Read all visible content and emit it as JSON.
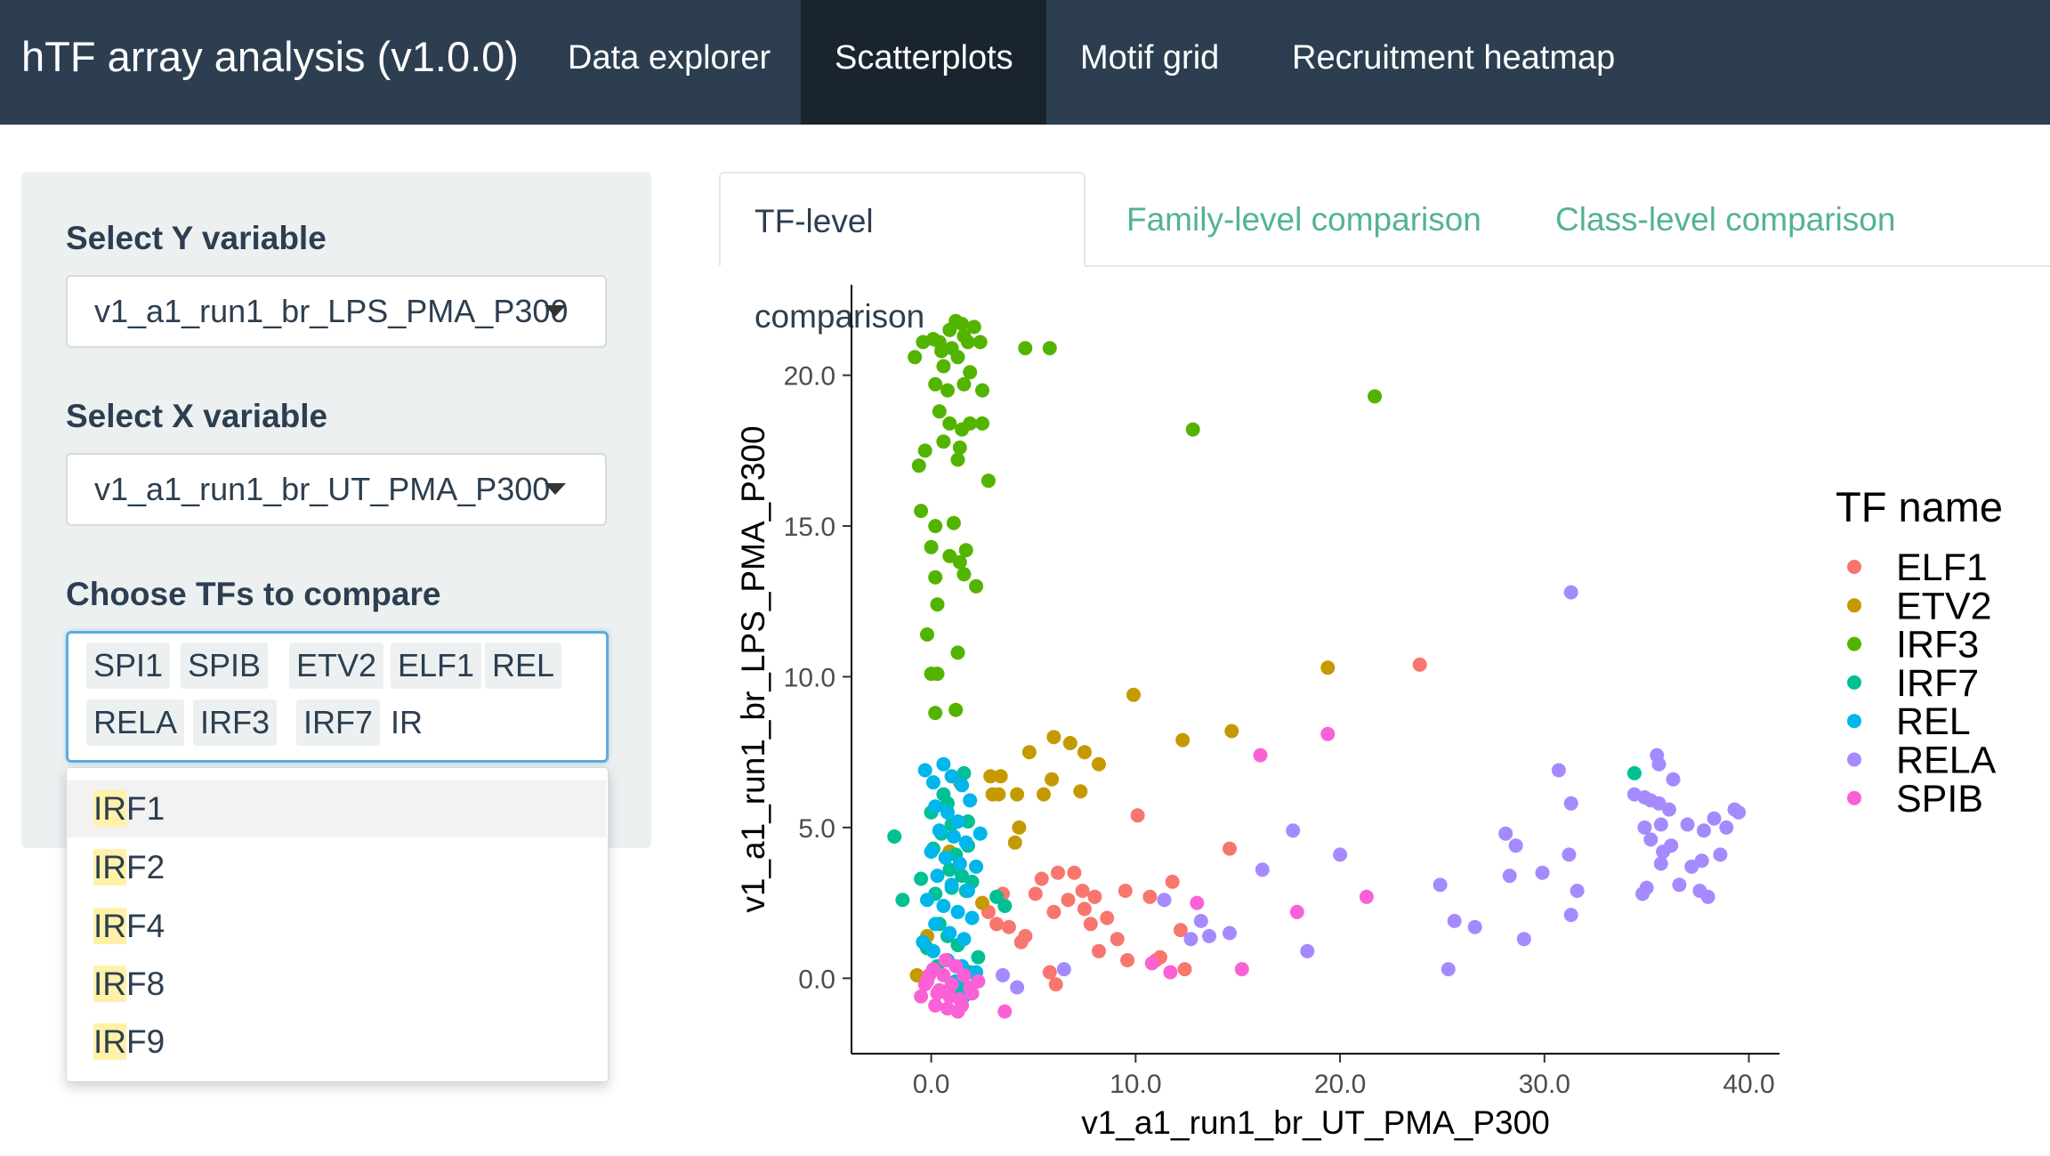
{
  "navbar": {
    "brand": "hTF array analysis (v1.0.0)",
    "tabs": [
      {
        "label": "Data explorer",
        "active": false
      },
      {
        "label": "Scatterplots",
        "active": true
      },
      {
        "label": "Motif grid",
        "active": false
      },
      {
        "label": "Recruitment heatmap",
        "active": false
      }
    ],
    "bg_color": "#2c3e50"
  },
  "sidebar": {
    "y_label": "Select Y variable",
    "y_value": "v1_a1_run1_br_LPS_PMA_P300",
    "x_label": "Select X variable",
    "x_value": "v1_a1_run1_br_UT_PMA_P300",
    "tf_label": "Choose TFs to compare",
    "tf_selected": [
      "SPI1",
      "SPIB",
      "ETV2",
      "ELF1",
      "REL",
      "RELA",
      "IRF3",
      "IRF7"
    ],
    "tf_typed": "IR",
    "dropdown_options": [
      {
        "match": "IR",
        "rest": "F1"
      },
      {
        "match": "IR",
        "rest": "F2"
      },
      {
        "match": "IR",
        "rest": "F4"
      },
      {
        "match": "IR",
        "rest": "F8"
      },
      {
        "match": "IR",
        "rest": "F9"
      }
    ]
  },
  "tabs": [
    {
      "label": "TF-level comparison",
      "active": true
    },
    {
      "label": "Family-level comparison",
      "active": false
    },
    {
      "label": "Class-level comparison",
      "active": false
    }
  ],
  "chart_data": {
    "type": "scatter",
    "xlabel": "v1_a1_run1_br_UT_PMA_P300",
    "ylabel": "v1_a1_run1_br_LPS_PMA_P300",
    "xlim": [
      -3.9,
      41.5
    ],
    "ylim": [
      -2.5,
      23.0
    ],
    "xticks": [
      0,
      10,
      20,
      30,
      40
    ],
    "yticks": [
      0,
      5,
      10,
      15,
      20
    ],
    "xtick_labels": [
      "0.0",
      "10.0",
      "20.0",
      "30.0",
      "40.0"
    ],
    "ytick_labels": [
      "0.0",
      "5.0",
      "10.0",
      "15.0",
      "20.0"
    ],
    "grid": false,
    "legend_title": "TF name",
    "legend_position": "right",
    "series": [
      {
        "name": "ELF1",
        "color": "#F8766D",
        "points": [
          [
            23.9,
            10.4
          ],
          [
            5.4,
            3.3
          ],
          [
            6.2,
            3.5
          ],
          [
            7.0,
            3.5
          ],
          [
            6.7,
            2.6
          ],
          [
            7.4,
            2.9
          ],
          [
            7.5,
            2.3
          ],
          [
            8.0,
            2.7
          ],
          [
            8.6,
            2.0
          ],
          [
            9.1,
            1.3
          ],
          [
            9.5,
            2.9
          ],
          [
            10.1,
            5.4
          ],
          [
            10.7,
            2.7
          ],
          [
            11.2,
            0.7
          ],
          [
            11.8,
            3.2
          ],
          [
            12.2,
            1.6
          ],
          [
            14.6,
            4.3
          ],
          [
            8.2,
            0.9
          ],
          [
            9.6,
            0.6
          ],
          [
            11.0,
            0.6
          ],
          [
            6.0,
            2.2
          ],
          [
            3.8,
            1.7
          ],
          [
            4.4,
            1.2
          ],
          [
            2.8,
            2.2
          ],
          [
            3.2,
            1.8
          ],
          [
            5.8,
            0.2
          ],
          [
            5.1,
            2.8
          ],
          [
            4.6,
            1.4
          ],
          [
            6.1,
            -0.2
          ],
          [
            12.4,
            0.3
          ],
          [
            3.5,
            2.8
          ],
          [
            7.8,
            1.8
          ]
        ]
      },
      {
        "name": "ETV2",
        "color": "#C49A00",
        "points": [
          [
            19.4,
            10.3
          ],
          [
            9.9,
            9.4
          ],
          [
            14.7,
            8.2
          ],
          [
            12.3,
            7.9
          ],
          [
            6.0,
            8.0
          ],
          [
            4.8,
            7.5
          ],
          [
            6.8,
            7.8
          ],
          [
            7.5,
            7.5
          ],
          [
            8.2,
            7.1
          ],
          [
            3.4,
            6.7
          ],
          [
            2.9,
            6.7
          ],
          [
            4.2,
            6.1
          ],
          [
            5.9,
            6.6
          ],
          [
            5.5,
            6.1
          ],
          [
            7.3,
            6.2
          ],
          [
            3.3,
            6.1
          ],
          [
            3.0,
            6.1
          ],
          [
            4.3,
            5.0
          ],
          [
            4.1,
            4.5
          ],
          [
            -0.2,
            1.4
          ],
          [
            -0.7,
            0.1
          ],
          [
            2.5,
            2.5
          ],
          [
            1.4,
            6.5
          ],
          [
            0.9,
            4.2
          ]
        ]
      },
      {
        "name": "IRF3",
        "color": "#53B400",
        "points": [
          [
            -0.8,
            20.6
          ],
          [
            -0.4,
            21.1
          ],
          [
            0.4,
            21.1
          ],
          [
            0.9,
            21.5
          ],
          [
            1.2,
            21.8
          ],
          [
            1.5,
            21.7
          ],
          [
            1.6,
            21.3
          ],
          [
            1.8,
            21.1
          ],
          [
            2.1,
            21.6
          ],
          [
            2.4,
            21.1
          ],
          [
            0.6,
            20.3
          ],
          [
            1.3,
            20.6
          ],
          [
            1.9,
            20.1
          ],
          [
            0.2,
            19.7
          ],
          [
            0.8,
            19.5
          ],
          [
            1.6,
            19.7
          ],
          [
            2.5,
            19.5
          ],
          [
            0.4,
            18.8
          ],
          [
            0.9,
            18.4
          ],
          [
            1.5,
            18.2
          ],
          [
            0.6,
            17.8
          ],
          [
            1.3,
            17.2
          ],
          [
            1.4,
            17.6
          ],
          [
            -0.6,
            17.0
          ],
          [
            -0.3,
            17.5
          ],
          [
            -0.5,
            15.5
          ],
          [
            0.2,
            15.0
          ],
          [
            1.1,
            15.1
          ],
          [
            0.0,
            14.3
          ],
          [
            0.9,
            14.0
          ],
          [
            1.4,
            13.8
          ],
          [
            1.7,
            14.2
          ],
          [
            1.6,
            13.4
          ],
          [
            0.2,
            13.3
          ],
          [
            2.2,
            13.0
          ],
          [
            0.3,
            12.4
          ],
          [
            -0.2,
            11.4
          ],
          [
            0.0,
            10.1
          ],
          [
            0.3,
            10.1
          ],
          [
            1.3,
            10.8
          ],
          [
            0.2,
            8.8
          ],
          [
            1.2,
            8.9
          ],
          [
            4.6,
            20.9
          ],
          [
            5.8,
            20.9
          ],
          [
            21.7,
            19.3
          ],
          [
            12.8,
            18.2
          ],
          [
            1.9,
            18.4
          ],
          [
            2.5,
            18.4
          ],
          [
            2.8,
            16.5
          ],
          [
            0.5,
            20.8
          ],
          [
            0.1,
            21.2
          ],
          [
            1.0,
            20.9
          ]
        ]
      },
      {
        "name": "IRF7",
        "color": "#00C094",
        "points": [
          [
            34.4,
            6.8
          ],
          [
            -1.8,
            4.7
          ],
          [
            0.6,
            6.1
          ],
          [
            0.0,
            5.5
          ],
          [
            1.0,
            5.1
          ],
          [
            1.8,
            5.2
          ],
          [
            0.5,
            4.8
          ],
          [
            1.2,
            4.1
          ],
          [
            0.9,
            3.6
          ],
          [
            1.5,
            3.4
          ],
          [
            2.0,
            3.2
          ],
          [
            1.7,
            2.9
          ],
          [
            0.2,
            2.8
          ],
          [
            0.4,
            1.8
          ],
          [
            0.8,
            1.4
          ],
          [
            1.3,
            1.1
          ],
          [
            -1.4,
            2.6
          ],
          [
            -0.5,
            3.3
          ],
          [
            3.2,
            2.7
          ],
          [
            3.6,
            2.4
          ],
          [
            2.3,
            0.7
          ],
          [
            1.9,
            0.2
          ],
          [
            1.4,
            -0.3
          ],
          [
            0.1,
            4.3
          ],
          [
            1.6,
            6.8
          ],
          [
            0.8,
            5.8
          ],
          [
            -0.2,
            1.0
          ],
          [
            0.3,
            0.4
          ],
          [
            1.8,
            4.4
          ],
          [
            1.0,
            3.0
          ]
        ]
      },
      {
        "name": "REL",
        "color": "#00B6EB",
        "points": [
          [
            -0.3,
            6.9
          ],
          [
            0.1,
            6.5
          ],
          [
            0.6,
            7.1
          ],
          [
            1.0,
            6.7
          ],
          [
            1.5,
            6.4
          ],
          [
            0.2,
            5.7
          ],
          [
            0.8,
            5.5
          ],
          [
            1.3,
            5.2
          ],
          [
            1.9,
            5.9
          ],
          [
            0.4,
            4.9
          ],
          [
            1.1,
            4.7
          ],
          [
            1.7,
            4.5
          ],
          [
            0.0,
            4.2
          ],
          [
            0.7,
            4.0
          ],
          [
            1.4,
            3.8
          ],
          [
            2.2,
            3.7
          ],
          [
            0.3,
            3.4
          ],
          [
            1.0,
            3.1
          ],
          [
            1.8,
            2.9
          ],
          [
            -0.2,
            2.6
          ],
          [
            0.6,
            2.4
          ],
          [
            1.3,
            2.2
          ],
          [
            2.0,
            2.0
          ],
          [
            0.2,
            1.8
          ],
          [
            0.9,
            1.5
          ],
          [
            1.6,
            1.3
          ],
          [
            0.1,
            0.9
          ],
          [
            0.8,
            0.6
          ],
          [
            1.5,
            0.4
          ],
          [
            2.2,
            0.2
          ],
          [
            1.6,
            -0.6
          ],
          [
            -0.4,
            1.2
          ],
          [
            2.4,
            4.8
          ],
          [
            1.2,
            -0.1
          ]
        ]
      },
      {
        "name": "RELA",
        "color": "#A58AFF",
        "points": [
          [
            31.3,
            12.8
          ],
          [
            30.7,
            6.9
          ],
          [
            31.3,
            5.8
          ],
          [
            31.2,
            4.1
          ],
          [
            31.3,
            2.1
          ],
          [
            31.6,
            2.9
          ],
          [
            29.9,
            3.5
          ],
          [
            28.3,
            3.4
          ],
          [
            28.6,
            4.4
          ],
          [
            28.1,
            4.8
          ],
          [
            24.9,
            3.1
          ],
          [
            25.6,
            1.9
          ],
          [
            26.6,
            1.7
          ],
          [
            29.0,
            1.3
          ],
          [
            34.9,
            6.0
          ],
          [
            35.2,
            5.9
          ],
          [
            35.6,
            5.8
          ],
          [
            35.6,
            7.1
          ],
          [
            35.5,
            7.4
          ],
          [
            36.3,
            6.6
          ],
          [
            36.1,
            5.6
          ],
          [
            35.7,
            5.1
          ],
          [
            35.2,
            4.6
          ],
          [
            36.2,
            4.4
          ],
          [
            37.0,
            5.1
          ],
          [
            37.8,
            4.9
          ],
          [
            38.3,
            5.3
          ],
          [
            38.9,
            5.0
          ],
          [
            39.3,
            5.6
          ],
          [
            34.9,
            5.0
          ],
          [
            35.8,
            4.2
          ],
          [
            35.7,
            3.8
          ],
          [
            37.2,
            3.7
          ],
          [
            37.7,
            3.9
          ],
          [
            38.6,
            4.1
          ],
          [
            37.6,
            2.9
          ],
          [
            38.0,
            2.7
          ],
          [
            35.0,
            3.0
          ],
          [
            34.8,
            2.8
          ],
          [
            39.5,
            5.5
          ],
          [
            34.4,
            6.1
          ],
          [
            36.6,
            3.1
          ],
          [
            20.0,
            4.1
          ],
          [
            16.2,
            3.6
          ],
          [
            17.7,
            4.9
          ],
          [
            25.3,
            0.3
          ],
          [
            18.4,
            0.9
          ],
          [
            14.6,
            1.5
          ],
          [
            13.2,
            1.9
          ],
          [
            13.6,
            1.4
          ],
          [
            11.4,
            2.6
          ],
          [
            6.5,
            0.3
          ],
          [
            3.5,
            0.1
          ],
          [
            4.2,
            -0.3
          ],
          [
            12.7,
            1.3
          ]
        ]
      },
      {
        "name": "SPIB",
        "color": "#FB61D7",
        "points": [
          [
            19.4,
            8.1
          ],
          [
            16.1,
            7.4
          ],
          [
            21.3,
            2.7
          ],
          [
            17.9,
            2.2
          ],
          [
            13.0,
            2.5
          ],
          [
            15.2,
            0.3
          ],
          [
            11.7,
            0.2
          ],
          [
            10.8,
            0.5
          ],
          [
            3.6,
            -1.1
          ],
          [
            -0.2,
            -0.1
          ],
          [
            0.4,
            -0.4
          ],
          [
            1.0,
            -0.2
          ],
          [
            1.6,
            0.1
          ],
          [
            2.0,
            -0.5
          ],
          [
            -0.5,
            -0.6
          ],
          [
            0.2,
            -0.9
          ],
          [
            0.8,
            -1.0
          ],
          [
            1.4,
            -0.7
          ],
          [
            1.9,
            -0.3
          ],
          [
            0.1,
            0.3
          ],
          [
            0.6,
            0.1
          ],
          [
            1.2,
            0.4
          ],
          [
            -0.3,
            -0.2
          ],
          [
            0.9,
            -0.6
          ],
          [
            1.5,
            -0.9
          ],
          [
            0.3,
            -0.5
          ],
          [
            2.3,
            -0.1
          ],
          [
            0.7,
            0.6
          ],
          [
            -0.1,
            0.1
          ],
          [
            1.3,
            -1.1
          ]
        ]
      }
    ]
  }
}
